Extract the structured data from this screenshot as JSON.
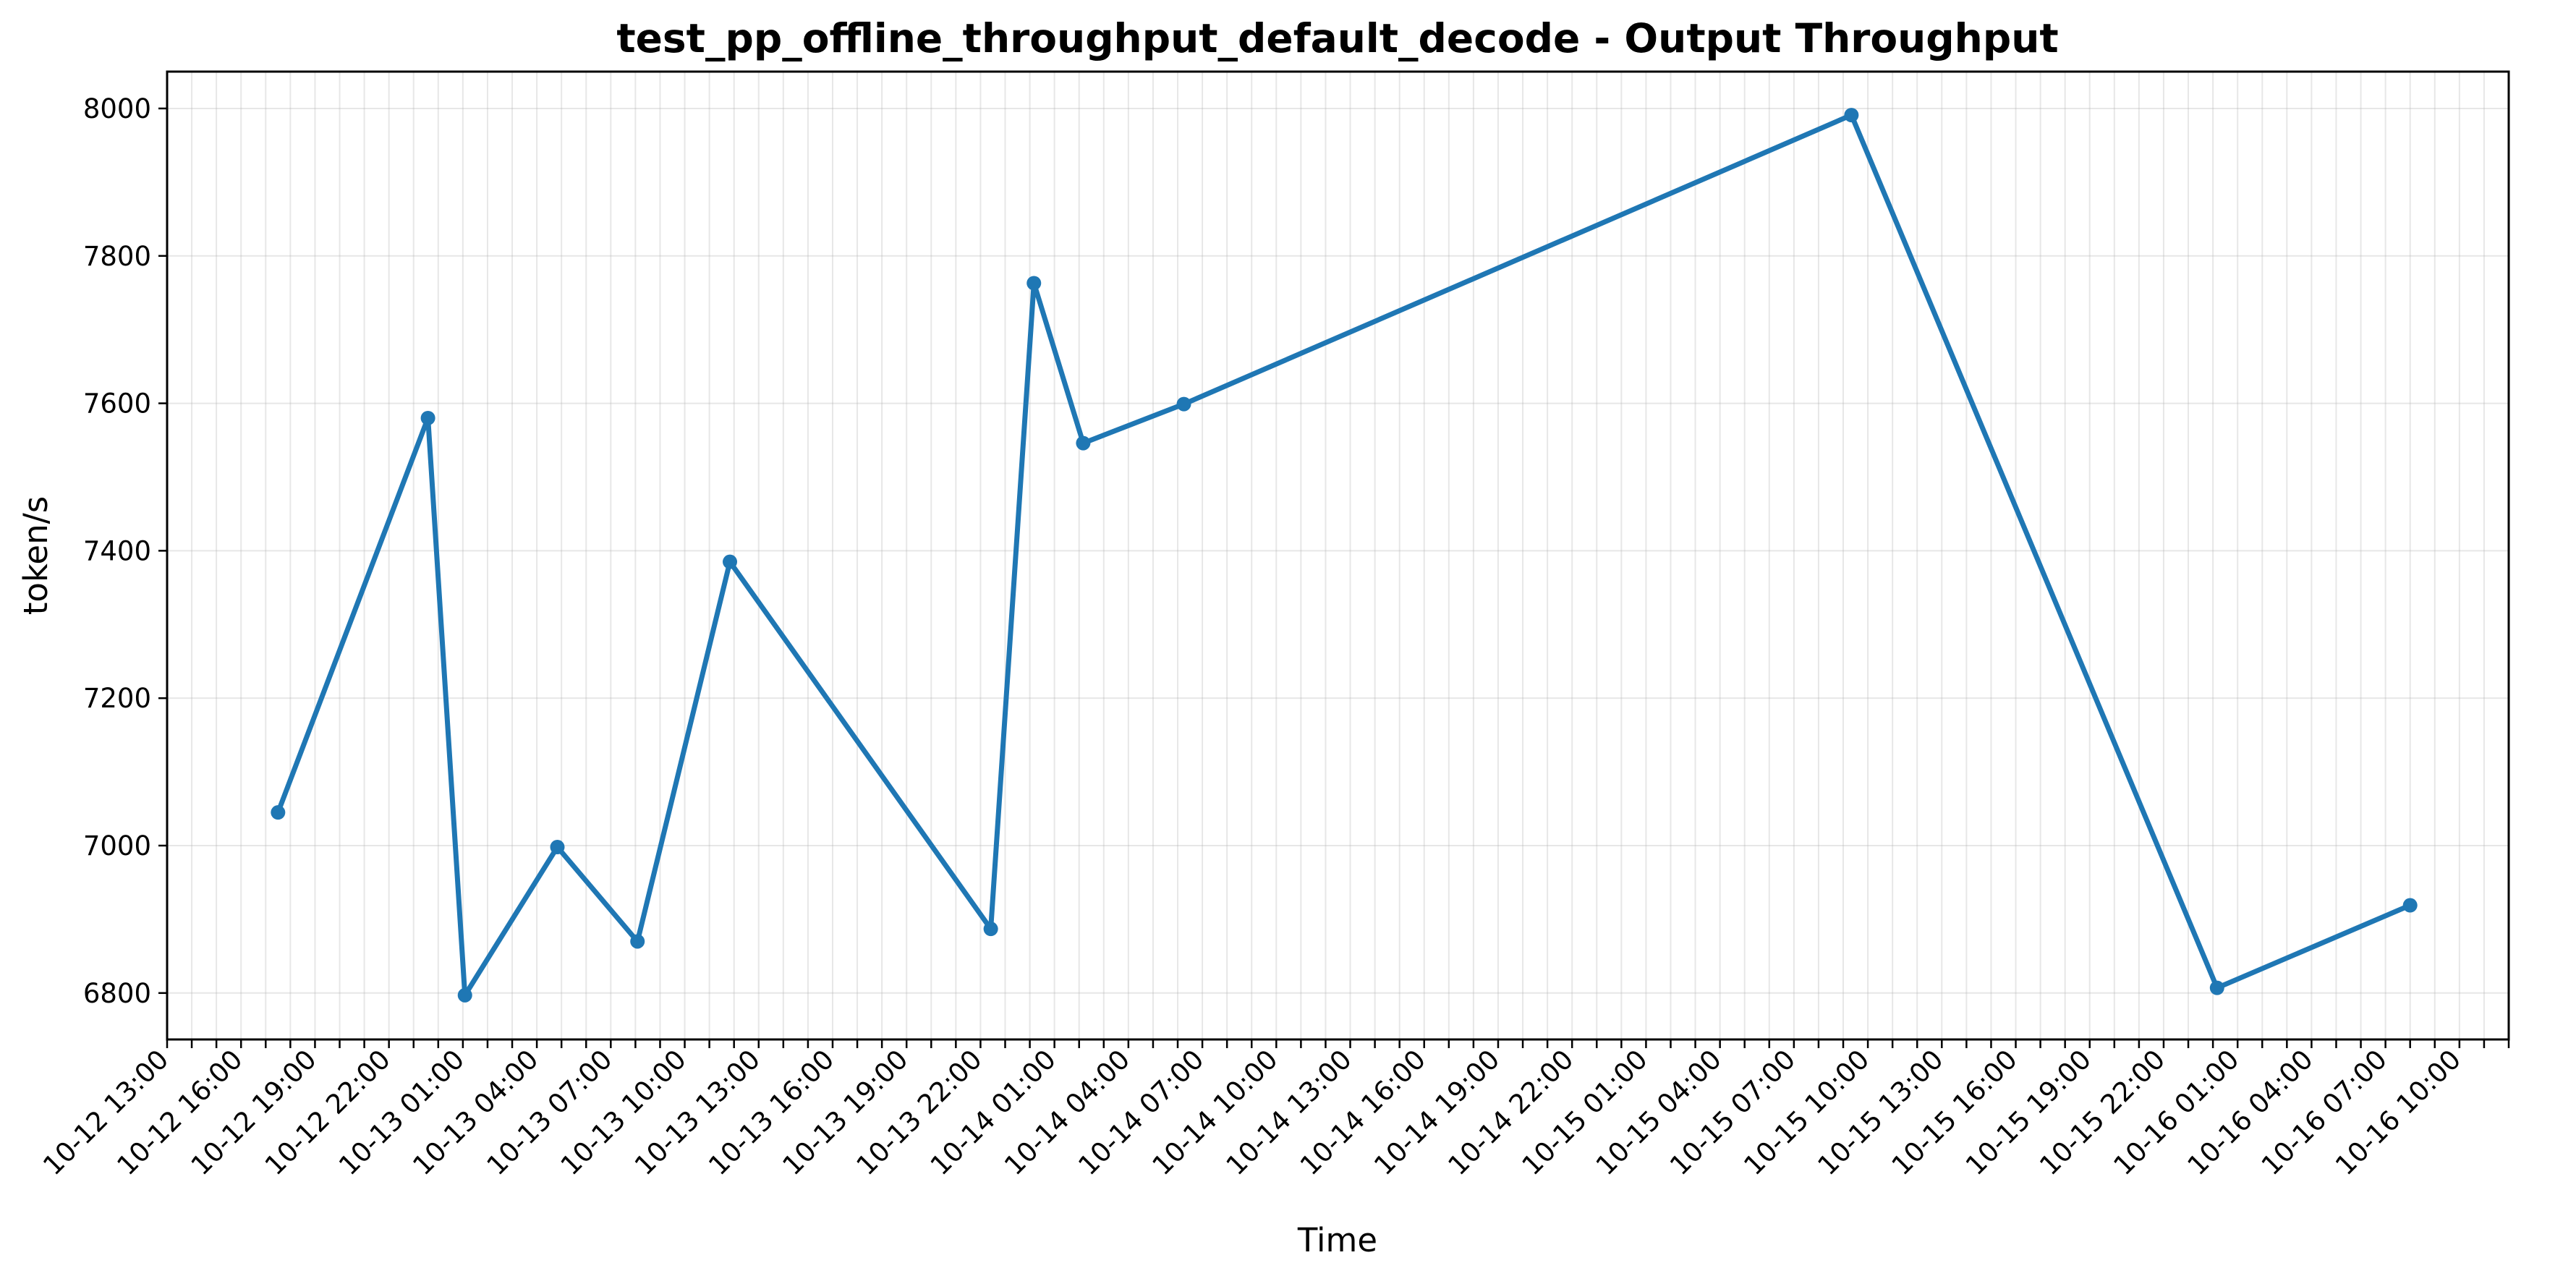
{
  "chart_data": {
    "type": "line",
    "title": "test_pp_offline_throughput_default_decode - Output Throughput",
    "xlabel": "Time",
    "ylabel": "token/s",
    "ylim": [
      6737,
      8050
    ],
    "yticks": [
      6800,
      7000,
      7200,
      7400,
      7600,
      7800,
      8000
    ],
    "grid": true,
    "legend": "none",
    "color": "#1f77b4",
    "xaxis": {
      "type": "time",
      "start": "2024-10-12 13:00",
      "end": "2024-10-16 12:00",
      "tick_hours": 1,
      "label_every_hours": 3,
      "label_format": "MM-DD HH:mm"
    },
    "series": [
      {
        "x": [
          "2024-10-12 17:30",
          "2024-10-12 23:35",
          "2024-10-13 01:05",
          "2024-10-13 04:50",
          "2024-10-13 08:05",
          "2024-10-13 11:50",
          "2024-10-13 22:25",
          "2024-10-14 00:10",
          "2024-10-14 02:10",
          "2024-10-14 06:15",
          "2024-10-15 09:20",
          "2024-10-16 00:10",
          "2024-10-16 08:00"
        ],
        "values": [
          7045,
          7580,
          6797,
          6998,
          6870,
          7385,
          6887,
          7763,
          7546,
          7599,
          7991,
          6807,
          6919
        ]
      }
    ]
  }
}
